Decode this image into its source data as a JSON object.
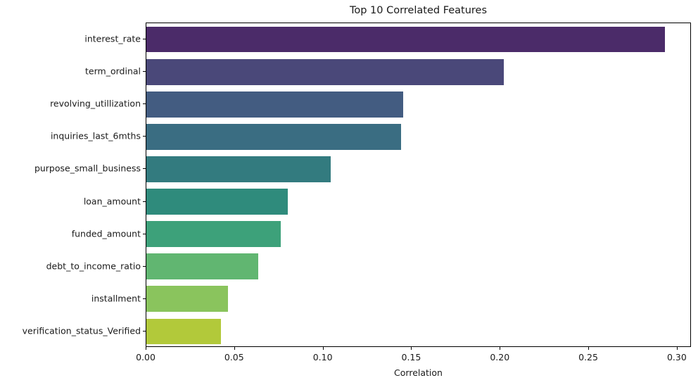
{
  "chart_data": {
    "type": "bar",
    "orientation": "horizontal",
    "title": "Top 10 Correlated Features",
    "xlabel": "Correlation",
    "ylabel": "",
    "xlim": [
      0,
      0.308
    ],
    "xticks": [
      "0.00",
      "0.05",
      "0.10",
      "0.15",
      "0.20",
      "0.25",
      "0.30"
    ],
    "grid": false,
    "legend": null,
    "palette": "viridis",
    "categories": [
      "interest_rate",
      "term_ordinal",
      "revolving_utillization",
      "inquiries_last_6mths",
      "purpose_small_business",
      "loan_amount",
      "funded_amount",
      "debt_to_income_ratio",
      "installment",
      "verification_status_Verified"
    ],
    "values": [
      0.293,
      0.202,
      0.145,
      0.144,
      0.104,
      0.08,
      0.076,
      0.063,
      0.046,
      0.042
    ],
    "colors": [
      "#4b2b69",
      "#4a4879",
      "#435c81",
      "#3a6d82",
      "#337b7f",
      "#2f8b7c",
      "#3da17a",
      "#61b671",
      "#8ac45d",
      "#b2c93a"
    ]
  }
}
